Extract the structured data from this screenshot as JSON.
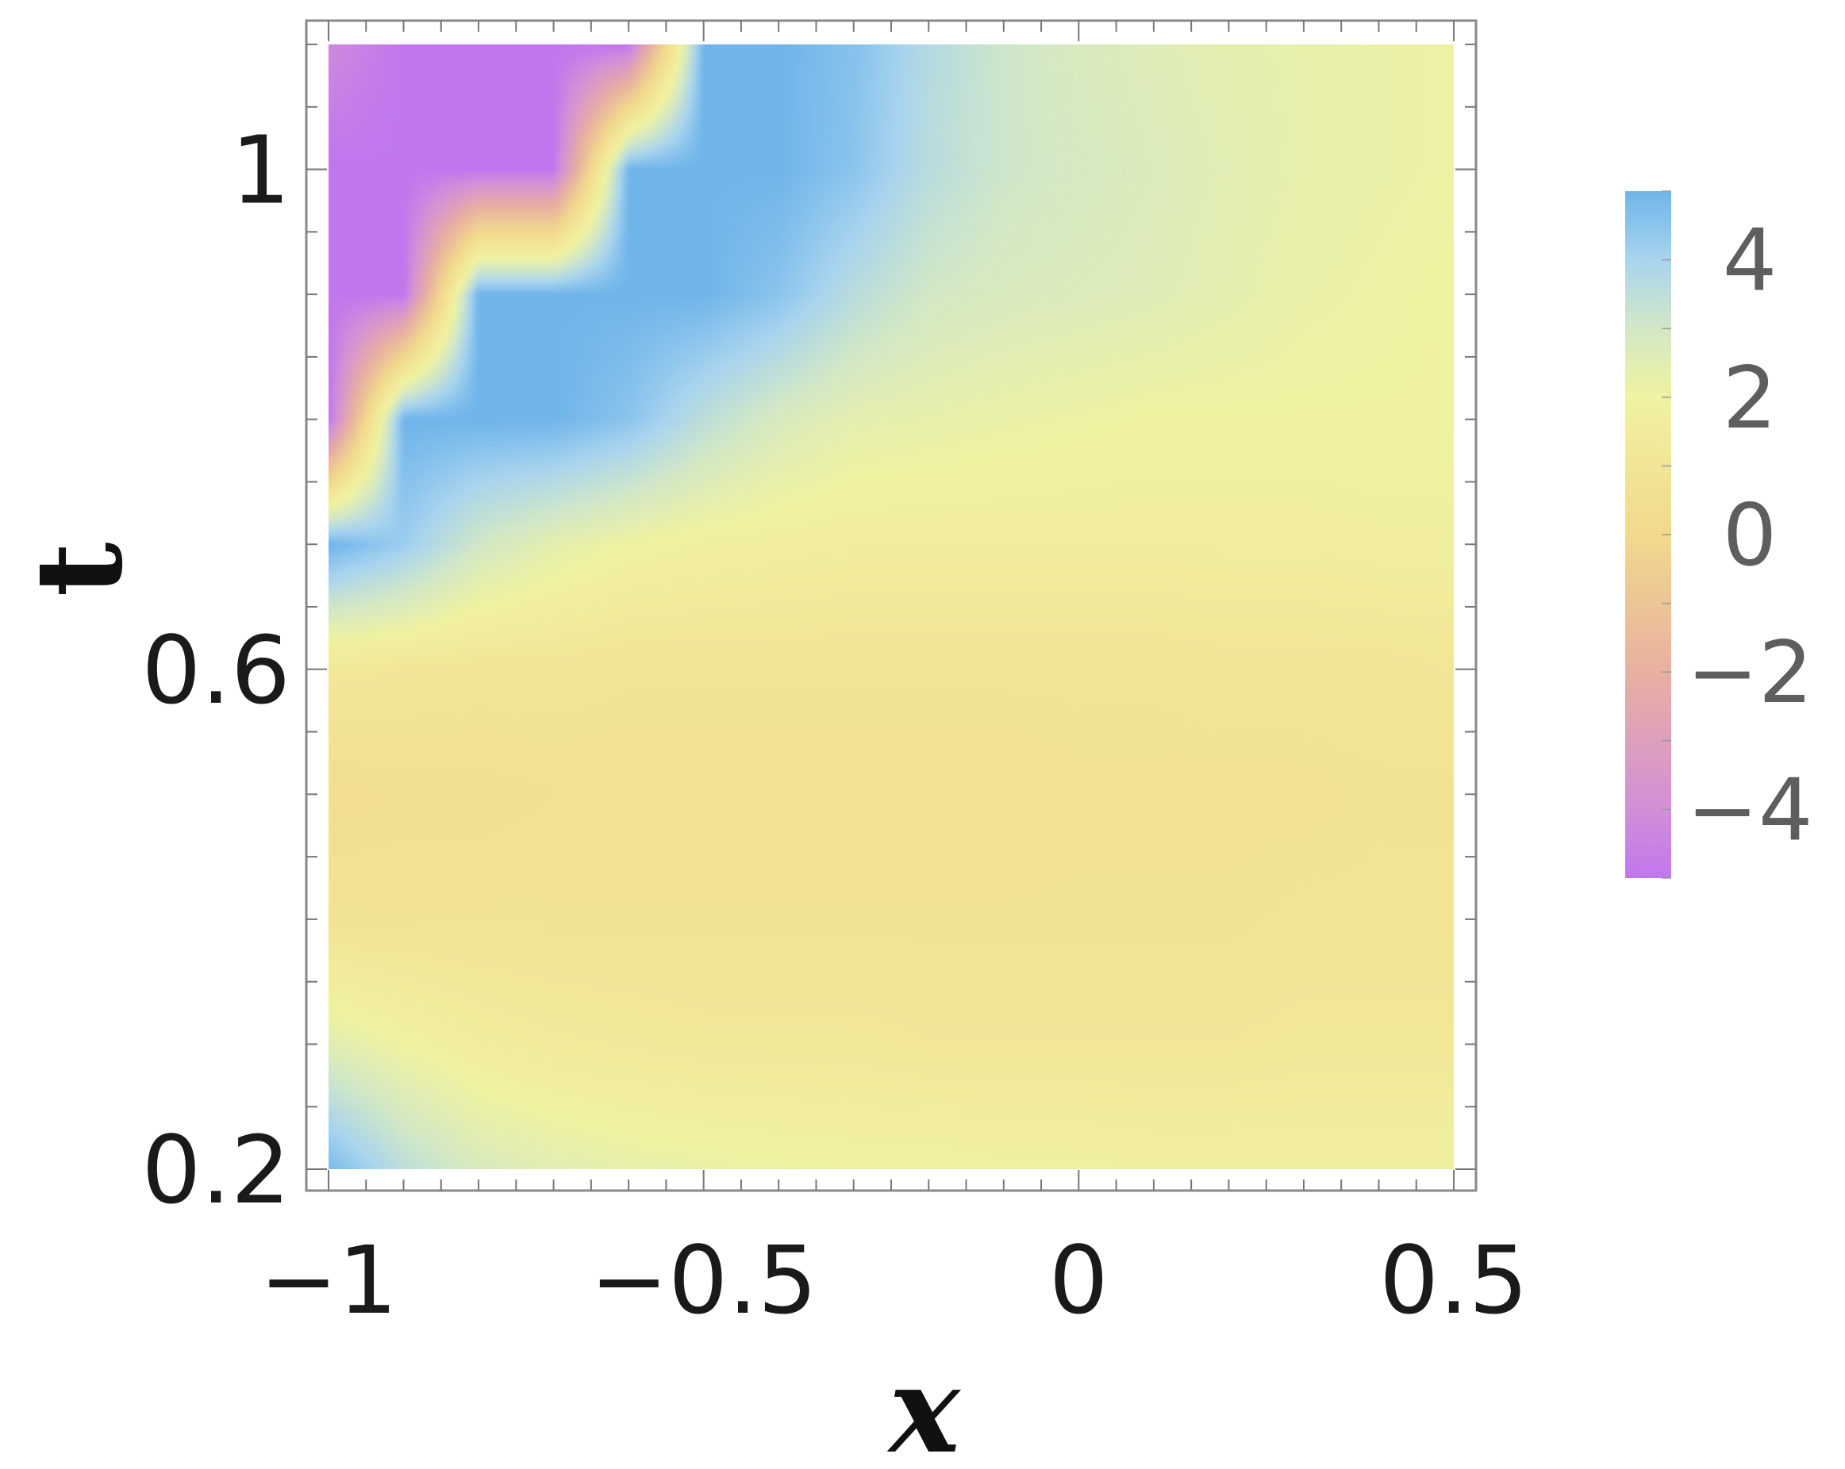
{
  "chart_data": {
    "type": "heatmap",
    "xlabel": "x",
    "ylabel": "t",
    "xlim": [
      -1,
      0.5
    ],
    "ylim": [
      0.2,
      1.1
    ],
    "xticks": [
      {
        "value": -1,
        "label": "−1"
      },
      {
        "value": -0.5,
        "label": "−0.5"
      },
      {
        "value": 0,
        "label": "0"
      },
      {
        "value": 0.5,
        "label": "0.5"
      }
    ],
    "yticks": [
      {
        "value": 0.2,
        "label": "0.2"
      },
      {
        "value": 0.6,
        "label": "0.6"
      },
      {
        "value": 1.0,
        "label": "1"
      }
    ],
    "colorbar": {
      "range": [
        -5,
        5
      ],
      "ticks": [
        {
          "value": 4,
          "label": "4"
        },
        {
          "value": 2,
          "label": "2"
        },
        {
          "value": 0,
          "label": "0"
        },
        {
          "value": -2,
          "label": "−2"
        },
        {
          "value": -4,
          "label": "−4"
        }
      ],
      "colors": [
        {
          "value": -5,
          "color": "#c077ee"
        },
        {
          "value": -4,
          "color": "#d28fd8"
        },
        {
          "value": -2,
          "color": "#e8b0a0"
        },
        {
          "value": 0,
          "color": "#f2d98c"
        },
        {
          "value": 2,
          "color": "#f0f2a0"
        },
        {
          "value": 3,
          "color": "#d2e8c6"
        },
        {
          "value": 4,
          "color": "#a8d4ee"
        },
        {
          "value": 5,
          "color": "#6fb5ea"
        }
      ]
    },
    "field_samples": {
      "x": [
        -1,
        -0.9,
        -0.8,
        -0.7,
        -0.6,
        -0.5,
        -0.4,
        -0.3,
        -0.2,
        -0.1,
        0,
        0.1,
        0.2,
        0.3,
        0.4,
        0.5
      ],
      "t": [
        0.2,
        0.3,
        0.4,
        0.5,
        0.6,
        0.7,
        0.8,
        0.9,
        1.0,
        1.1
      ],
      "values": [
        [
          4.8,
          3.5,
          2.8,
          2.5,
          2.3,
          2.2,
          2.1,
          2.0,
          2.0,
          1.9,
          1.9,
          1.8,
          1.8,
          1.8,
          1.8,
          1.8
        ],
        [
          2.5,
          2.0,
          1.6,
          1.4,
          1.3,
          1.2,
          1.2,
          1.2,
          1.1,
          1.1,
          1.1,
          1.1,
          1.1,
          1.2,
          1.2,
          1.2
        ],
        [
          0.8,
          0.8,
          0.8,
          0.8,
          0.8,
          0.8,
          0.8,
          0.8,
          0.8,
          0.8,
          0.8,
          0.8,
          0.8,
          0.9,
          0.9,
          0.9
        ],
        [
          0.4,
          0.5,
          0.5,
          0.6,
          0.6,
          0.6,
          0.6,
          0.6,
          0.6,
          0.6,
          0.7,
          0.7,
          0.7,
          0.7,
          0.8,
          0.8
        ],
        [
          1.2,
          1.1,
          1.0,
          1.0,
          0.9,
          0.9,
          0.9,
          0.9,
          0.9,
          0.9,
          0.9,
          0.9,
          1.0,
          1.0,
          1.0,
          1.1
        ],
        [
          5.0,
          4.2,
          3.0,
          2.4,
          2.0,
          1.8,
          1.7,
          1.6,
          1.6,
          1.6,
          1.6,
          1.6,
          1.6,
          1.6,
          1.7,
          1.7
        ],
        [
          -5.0,
          5.0,
          5.0,
          5.0,
          4.5,
          3.5,
          2.8,
          2.4,
          2.3,
          2.2,
          2.1,
          2.0,
          2.0,
          2.0,
          2.0,
          2.0
        ],
        [
          -5.0,
          -5.0,
          5.0,
          5.0,
          5.0,
          5.0,
          4.5,
          3.6,
          3.0,
          2.8,
          2.7,
          2.6,
          2.4,
          2.2,
          2.1,
          2.0
        ],
        [
          -5.0,
          -5.0,
          -5.0,
          -5.0,
          5.0,
          5.0,
          5.0,
          4.5,
          3.6,
          3.1,
          2.9,
          2.7,
          2.5,
          2.3,
          2.2,
          2.1
        ],
        [
          -4.2,
          -5.0,
          -5.0,
          -5.0,
          -5.0,
          5.0,
          5.0,
          4.6,
          3.7,
          3.1,
          2.8,
          2.6,
          2.4,
          2.3,
          2.2,
          2.1
        ]
      ]
    }
  }
}
